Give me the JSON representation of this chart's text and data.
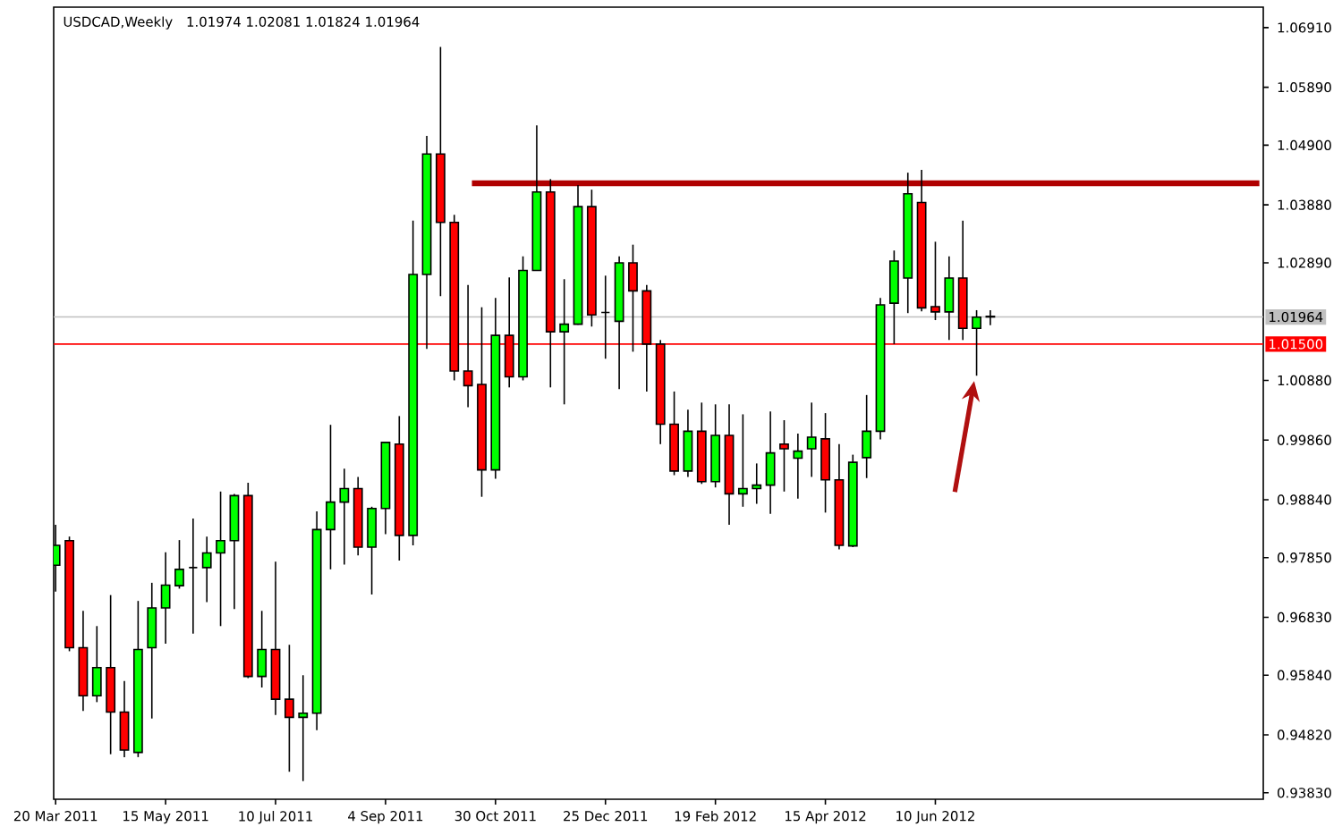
{
  "chart_data": {
    "type": "candlestick",
    "title": "USDCAD,Weekly",
    "subtitle": "1.01974 1.02081 1.01824 1.01964",
    "x": [
      "2011-03-20",
      "2011-03-27",
      "2011-04-03",
      "2011-04-10",
      "2011-04-17",
      "2011-04-24",
      "2011-05-01",
      "2011-05-08",
      "2011-05-15",
      "2011-05-22",
      "2011-05-29",
      "2011-06-05",
      "2011-06-12",
      "2011-06-19",
      "2011-06-26",
      "2011-07-03",
      "2011-07-10",
      "2011-07-17",
      "2011-07-24",
      "2011-07-31",
      "2011-08-07",
      "2011-08-14",
      "2011-08-21",
      "2011-08-28",
      "2011-09-04",
      "2011-09-11",
      "2011-09-18",
      "2011-09-25",
      "2011-10-02",
      "2011-10-09",
      "2011-10-16",
      "2011-10-23",
      "2011-10-30",
      "2011-11-06",
      "2011-11-13",
      "2011-11-20",
      "2011-11-27",
      "2011-12-04",
      "2011-12-11",
      "2011-12-18",
      "2011-12-25",
      "2012-01-01",
      "2012-01-08",
      "2012-01-15",
      "2012-01-22",
      "2012-01-29",
      "2012-02-05",
      "2012-02-12",
      "2012-02-19",
      "2012-02-26",
      "2012-03-04",
      "2012-03-11",
      "2012-03-18",
      "2012-03-25",
      "2012-04-01",
      "2012-04-08",
      "2012-04-15",
      "2012-04-22",
      "2012-04-29",
      "2012-05-06",
      "2012-05-13",
      "2012-05-20",
      "2012-05-27",
      "2012-06-03",
      "2012-06-10",
      "2012-06-17",
      "2012-06-24",
      "2012-07-01",
      "2012-07-08"
    ],
    "ohlc": [
      [
        0.9772,
        0.9841,
        0.9727,
        0.9806
      ],
      [
        0.9814,
        0.9821,
        0.9625,
        0.9631
      ],
      [
        0.9631,
        0.9694,
        0.9523,
        0.9549
      ],
      [
        0.9549,
        0.9668,
        0.9538,
        0.9597
      ],
      [
        0.9597,
        0.9721,
        0.9449,
        0.9521
      ],
      [
        0.9521,
        0.9574,
        0.9444,
        0.9456
      ],
      [
        0.9452,
        0.9711,
        0.9444,
        0.9628
      ],
      [
        0.9631,
        0.9742,
        0.951,
        0.9699
      ],
      [
        0.9699,
        0.9794,
        0.9638,
        0.9738
      ],
      [
        0.9737,
        0.9815,
        0.9732,
        0.9765
      ],
      [
        0.9768,
        0.9852,
        0.9655,
        0.9768
      ],
      [
        0.9768,
        0.9821,
        0.9709,
        0.9793
      ],
      [
        0.9793,
        0.9898,
        0.9668,
        0.9814
      ],
      [
        0.9814,
        0.9894,
        0.9697,
        0.9891
      ],
      [
        0.9891,
        0.9913,
        0.9579,
        0.9582
      ],
      [
        0.9582,
        0.9694,
        0.9563,
        0.9628
      ],
      [
        0.9628,
        0.9778,
        0.9516,
        0.9543
      ],
      [
        0.9543,
        0.9636,
        0.9419,
        0.9512
      ],
      [
        0.9512,
        0.9584,
        0.9403,
        0.9519
      ],
      [
        0.9519,
        0.9864,
        0.949,
        0.9833
      ],
      [
        0.9833,
        1.0012,
        0.9765,
        0.988
      ],
      [
        0.988,
        0.9937,
        0.9773,
        0.9903
      ],
      [
        0.9903,
        0.9923,
        0.9789,
        0.9803
      ],
      [
        0.9803,
        0.9872,
        0.9722,
        0.9869
      ],
      [
        0.9869,
        0.9982,
        0.9825,
        0.9982
      ],
      [
        0.9979,
        1.0027,
        0.978,
        0.9823
      ],
      [
        0.9823,
        1.0361,
        0.9806,
        1.0269
      ],
      [
        1.0269,
        1.0506,
        1.0142,
        1.0475
      ],
      [
        1.0475,
        1.0658,
        1.0232,
        1.0358
      ],
      [
        1.0358,
        1.0371,
        1.0088,
        1.0104
      ],
      [
        1.0104,
        1.0251,
        1.0042,
        1.0079
      ],
      [
        1.0081,
        1.0213,
        0.9889,
        0.9935
      ],
      [
        0.9935,
        1.0229,
        0.992,
        1.0165
      ],
      [
        1.0165,
        1.0264,
        1.0076,
        1.0094
      ],
      [
        1.0094,
        1.03,
        1.0088,
        1.0276
      ],
      [
        1.0276,
        1.0524,
        1.0276,
        1.041
      ],
      [
        1.041,
        1.0432,
        1.0076,
        1.0171
      ],
      [
        1.0171,
        1.0261,
        1.0047,
        1.0184
      ],
      [
        1.0184,
        1.0422,
        1.0183,
        1.0385
      ],
      [
        1.0385,
        1.0414,
        1.018,
        1.02
      ],
      [
        1.0204,
        1.0267,
        1.0125,
        1.0204
      ],
      [
        1.0189,
        1.03,
        1.0073,
        1.0289
      ],
      [
        1.0289,
        1.032,
        1.0137,
        1.0241
      ],
      [
        1.0241,
        1.0251,
        1.0069,
        1.015
      ],
      [
        1.015,
        1.0157,
        0.9979,
        1.0013
      ],
      [
        1.0013,
        1.0069,
        0.9926,
        0.9933
      ],
      [
        0.9933,
        1.0038,
        0.9923,
        1.0001
      ],
      [
        1.0001,
        1.005,
        0.9911,
        0.9915
      ],
      [
        0.9915,
        1.0047,
        0.9905,
        0.9994
      ],
      [
        0.9994,
        1.0047,
        0.9841,
        0.9894
      ],
      [
        0.9894,
        1.003,
        0.9872,
        0.9903
      ],
      [
        0.9903,
        0.9946,
        0.9877,
        0.9909
      ],
      [
        0.9909,
        1.0035,
        0.986,
        0.9964
      ],
      [
        0.9979,
        1.002,
        0.9898,
        0.9971
      ],
      [
        0.9955,
        0.9997,
        0.9886,
        0.9967
      ],
      [
        0.9971,
        1.005,
        0.9923,
        0.9991
      ],
      [
        0.9988,
        1.0032,
        0.9862,
        0.9918
      ],
      [
        0.9918,
        0.9979,
        0.9799,
        0.9806
      ],
      [
        0.9805,
        0.9961,
        0.9803,
        0.9948
      ],
      [
        0.9956,
        1.0063,
        0.9921,
        1.0001
      ],
      [
        1.0001,
        1.0229,
        0.9987,
        1.0217
      ],
      [
        1.022,
        1.031,
        1.015,
        1.0292
      ],
      [
        1.0263,
        1.0443,
        1.0203,
        1.0407
      ],
      [
        1.0392,
        1.0448,
        1.0206,
        1.0212
      ],
      [
        1.0214,
        1.0325,
        1.0191,
        1.0205
      ],
      [
        1.0205,
        1.03,
        1.0157,
        1.0263
      ],
      [
        1.0263,
        1.0361,
        1.0157,
        1.0177
      ],
      [
        1.0177,
        1.0208,
        1.0096,
        1.0196
      ],
      [
        1.01974,
        1.02081,
        1.01824,
        1.01964
      ]
    ],
    "colors": [
      "#00ff00",
      "#ff0000",
      "#ff0000",
      "#00ff00",
      "#ff0000",
      "#ff0000",
      "#00ff00",
      "#00ff00",
      "#00ff00",
      "#00ff00",
      "#000000",
      "#00ff00",
      "#00ff00",
      "#00ff00",
      "#ff0000",
      "#00ff00",
      "#ff0000",
      "#ff0000",
      "#00ff00",
      "#00ff00",
      "#00ff00",
      "#00ff00",
      "#ff0000",
      "#00ff00",
      "#00ff00",
      "#ff0000",
      "#00ff00",
      "#00ff00",
      "#ff0000",
      "#ff0000",
      "#ff0000",
      "#ff0000",
      "#00ff00",
      "#ff0000",
      "#00ff00",
      "#00ff00",
      "#ff0000",
      "#00ff00",
      "#00ff00",
      "#ff0000",
      "#000000",
      "#00ff00",
      "#ff0000",
      "#ff0000",
      "#ff0000",
      "#ff0000",
      "#00ff00",
      "#ff0000",
      "#00ff00",
      "#ff0000",
      "#00ff00",
      "#00ff00",
      "#00ff00",
      "#ff0000",
      "#00ff00",
      "#00ff00",
      "#ff0000",
      "#ff0000",
      "#00ff00",
      "#00ff00",
      "#00ff00",
      "#00ff00",
      "#00ff00",
      "#ff0000",
      "#ff0000",
      "#00ff00",
      "#ff0000",
      "#00ff00",
      "#000000"
    ],
    "series": [
      {
        "type": "line",
        "x": [
          "2011-10-18",
          "2012-11-22"
        ],
        "values": [
          1.0425,
          1.0425
        ],
        "color": "#b00000"
      }
    ],
    "ref_lines": [
      {
        "axis": "y",
        "value": 1.01964,
        "label": "1.01964",
        "color": "#c0c0c0"
      },
      {
        "axis": "y",
        "value": 1.015,
        "label": "1.01500",
        "color": "#ff0000"
      }
    ],
    "xlim": [
      "2011-03-19",
      "2012-11-24"
    ],
    "xticks": [
      {
        "value": "2011-03-20",
        "label": "20 Mar 2011"
      },
      {
        "value": "2011-05-15",
        "label": "15 May 2011"
      },
      {
        "value": "2011-07-10",
        "label": "10 Jul 2011"
      },
      {
        "value": "2011-09-04",
        "label": "4 Sep 2011"
      },
      {
        "value": "2011-10-30",
        "label": "30 Oct 2011"
      },
      {
        "value": "2011-12-25",
        "label": "25 Dec 2011"
      },
      {
        "value": "2012-02-19",
        "label": "19 Feb 2012"
      },
      {
        "value": "2012-04-15",
        "label": "15 Apr 2012"
      },
      {
        "value": "2012-06-10",
        "label": "10 Jun 2012"
      }
    ],
    "ylim": [
      0.9372,
      1.0726
    ],
    "yticks": [
      {
        "value": 1.0691,
        "label": "1.06910"
      },
      {
        "value": 1.0589,
        "label": "1.05890"
      },
      {
        "value": 1.049,
        "label": "1.04900"
      },
      {
        "value": 1.0388,
        "label": "1.03880"
      },
      {
        "value": 1.0289,
        "label": "1.02890"
      },
      {
        "value": 1.0088,
        "label": "1.00880"
      },
      {
        "value": 0.9986,
        "label": "0.99860"
      },
      {
        "value": 0.9884,
        "label": "0.98840"
      },
      {
        "value": 0.9785,
        "label": "0.97850"
      },
      {
        "value": 0.9683,
        "label": "0.96830"
      },
      {
        "value": 0.9584,
        "label": "0.95840"
      },
      {
        "value": 0.9482,
        "label": "0.94820"
      },
      {
        "value": 0.9383,
        "label": "0.93830"
      }
    ]
  }
}
